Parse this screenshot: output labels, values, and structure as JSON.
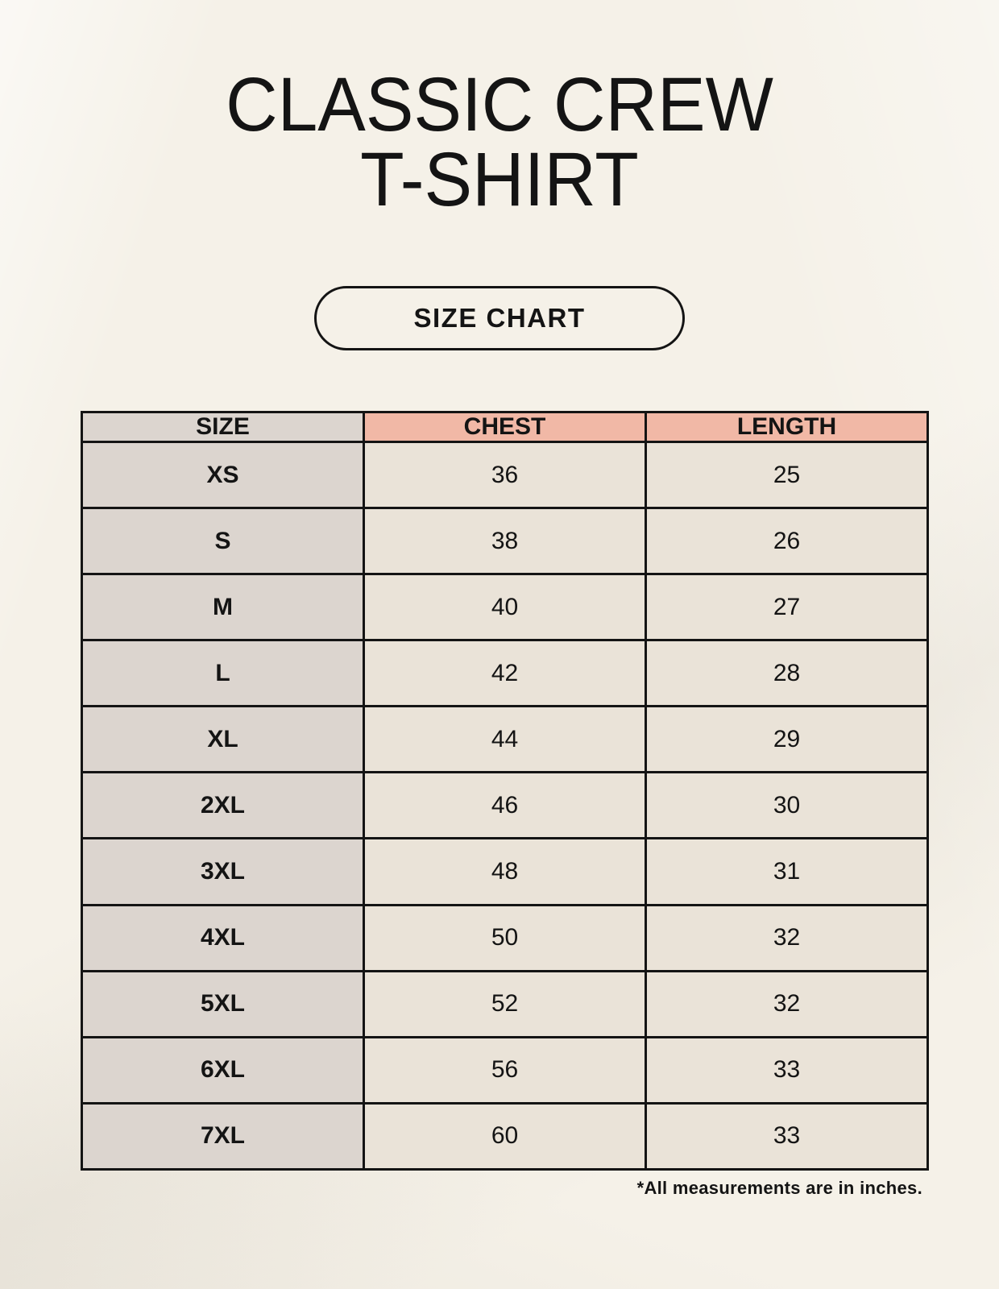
{
  "title": {
    "line1": "CLASSIC CREW",
    "line2": "T-SHIRT"
  },
  "size_chart_button": {
    "label": "SIZE CHART"
  },
  "footnote": {
    "text": "*All measurements are in inches."
  },
  "colors": {
    "background": "#f5f1e8",
    "header_accent": "#f1b8a6",
    "size_column": "#dcd5cf",
    "cell_beige": "#eae3d8",
    "border": "#141414",
    "text": "#141414"
  },
  "chart_data": {
    "type": "table",
    "title": "CLASSIC CREW T-SHIRT",
    "subtitle": "SIZE CHART",
    "columns": [
      "SIZE",
      "CHEST",
      "LENGTH"
    ],
    "rows": [
      [
        "XS",
        "36",
        "25"
      ],
      [
        "S",
        "38",
        "26"
      ],
      [
        "M",
        "40",
        "27"
      ],
      [
        "L",
        "42",
        "28"
      ],
      [
        "XL",
        "44",
        "29"
      ],
      [
        "2XL",
        "46",
        "30"
      ],
      [
        "3XL",
        "48",
        "31"
      ],
      [
        "4XL",
        "50",
        "32"
      ],
      [
        "5XL",
        "52",
        "32"
      ],
      [
        "6XL",
        "56",
        "33"
      ],
      [
        "7XL",
        "60",
        "33"
      ]
    ],
    "units_note": "*All measurements are in inches."
  }
}
